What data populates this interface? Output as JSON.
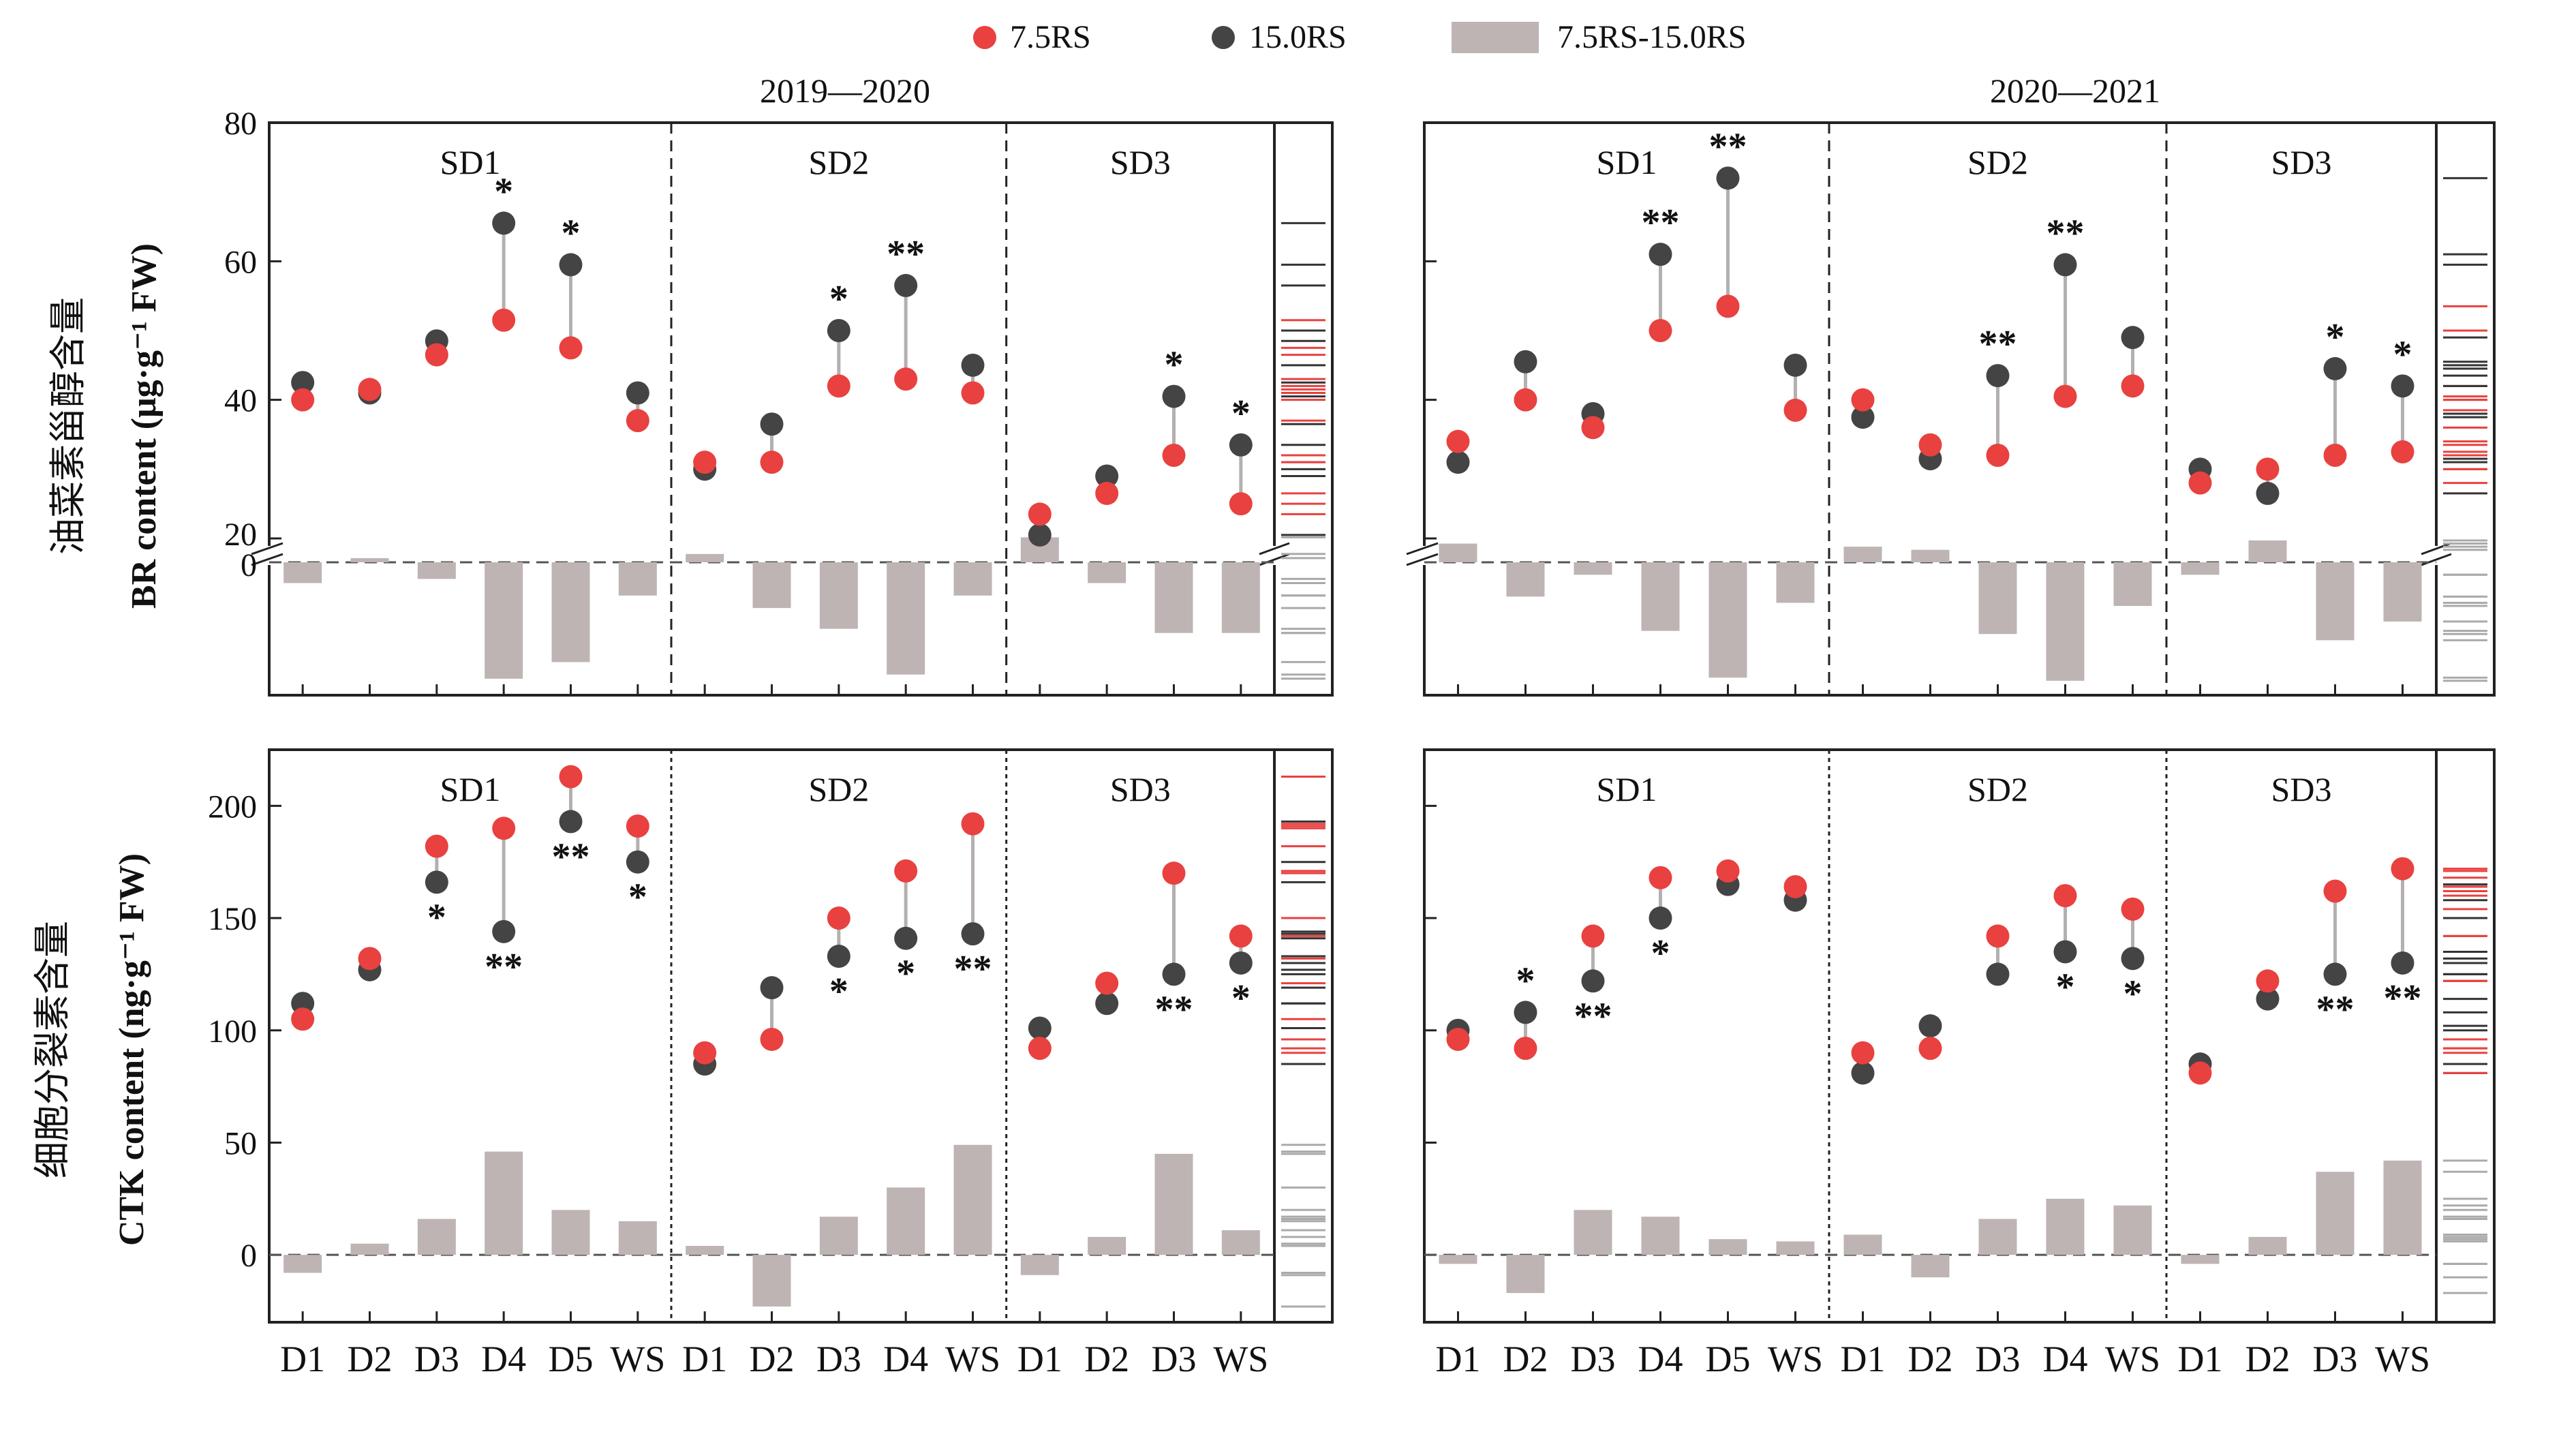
{
  "legend": [
    {
      "label": "7.5RS",
      "kind": "dot",
      "color": "#e8413f"
    },
    {
      "label": "15.0RS",
      "kind": "dot",
      "color": "#444444"
    },
    {
      "label": "7.5RS-15.0RS",
      "kind": "bar",
      "color": "#bdb4b3"
    }
  ],
  "years": [
    "2019—2020",
    "2020—2021"
  ],
  "ylabels": {
    "br_cn": "油菜素甾醇含量",
    "br_en": "BR content (μg·g⁻¹ FW)",
    "ctk_cn": "细胞分裂素含量",
    "ctk_en": "CTK content (ng·g⁻¹ FW)"
  },
  "colors": {
    "red": "#e8413f",
    "dark": "#444444",
    "bar": "#bdb4b3",
    "stem": "#b5b0b0"
  },
  "chart_data": [
    {
      "type": "dot-bar",
      "panel": "BR 2019—2020",
      "year": "2019—2020",
      "ylim": [
        20,
        80
      ],
      "yticks": [
        20,
        40,
        60,
        80
      ],
      "diff_ylim": [
        -15,
        5
      ],
      "groups": [
        {
          "name": "SD1",
          "categories": [
            "D1",
            "D2",
            "D3",
            "D4",
            "D5",
            "WS"
          ],
          "rs75": [
            40,
            41.5,
            46.5,
            51.5,
            47.5,
            37
          ],
          "rs150": [
            42.5,
            41,
            48.5,
            65.5,
            59.5,
            41
          ],
          "sig": [
            "",
            "",
            "",
            "*",
            "*",
            ""
          ]
        },
        {
          "name": "SD2",
          "categories": [
            "D1",
            "D2",
            "D3",
            "D4",
            "WS"
          ],
          "rs75": [
            31,
            31,
            42,
            43,
            41
          ],
          "rs150": [
            30,
            36.5,
            50,
            56.5,
            45
          ],
          "sig": [
            "",
            "",
            "*",
            "**",
            ""
          ]
        },
        {
          "name": "SD3",
          "categories": [
            "D1",
            "D2",
            "D3",
            "WS"
          ],
          "rs75": [
            23.5,
            26.5,
            32,
            25
          ],
          "rs150": [
            20.5,
            29,
            40.5,
            33.5
          ],
          "sig": [
            "",
            "",
            "*",
            "*"
          ]
        }
      ]
    },
    {
      "type": "dot-bar",
      "panel": "BR 2020—2021",
      "year": "2020—2021",
      "ylim": [
        20,
        80
      ],
      "yticks": [
        20,
        40,
        60,
        80
      ],
      "diff_ylim": [
        -20,
        5
      ],
      "groups": [
        {
          "name": "SD1",
          "categories": [
            "D1",
            "D2",
            "D3",
            "D4",
            "D5",
            "WS"
          ],
          "rs75": [
            34,
            40,
            36,
            50,
            53.5,
            38.5
          ],
          "rs150": [
            31,
            45.5,
            38,
            61,
            72,
            45
          ],
          "sig": [
            "",
            "",
            "",
            "**",
            "**",
            ""
          ]
        },
        {
          "name": "SD2",
          "categories": [
            "D1",
            "D2",
            "D3",
            "D4",
            "WS"
          ],
          "rs75": [
            40,
            33.5,
            32,
            40.5,
            42
          ],
          "rs150": [
            37.5,
            31.5,
            43.5,
            59.5,
            49
          ],
          "sig": [
            "",
            "",
            "**",
            "**",
            ""
          ]
        },
        {
          "name": "SD3",
          "categories": [
            "D1",
            "D2",
            "D3",
            "WS"
          ],
          "rs75": [
            28,
            30,
            32,
            32.5
          ],
          "rs150": [
            30,
            26.5,
            44.5,
            42
          ],
          "sig": [
            "",
            "",
            "*",
            "*"
          ]
        }
      ]
    },
    {
      "type": "dot-bar",
      "panel": "CTK 2019—2020",
      "year": "2019—2020",
      "ylim": [
        -30,
        225
      ],
      "yticks": [
        0,
        50,
        100,
        150,
        200
      ],
      "groups": [
        {
          "name": "SD1",
          "categories": [
            "D1",
            "D2",
            "D3",
            "D4",
            "D5",
            "WS"
          ],
          "rs75": [
            105,
            132,
            182,
            190,
            213,
            191
          ],
          "rs150": [
            112,
            127,
            166,
            144,
            193,
            175
          ],
          "diff": [
            -8,
            5,
            16,
            46,
            20,
            15
          ],
          "sig": [
            "",
            "",
            "*",
            "**",
            "**",
            "*"
          ]
        },
        {
          "name": "SD2",
          "categories": [
            "D1",
            "D2",
            "D3",
            "D4",
            "WS"
          ],
          "rs75": [
            90,
            96,
            150,
            171,
            192
          ],
          "rs150": [
            85,
            119,
            133,
            141,
            143
          ],
          "diff": [
            4,
            -23,
            17,
            30,
            49
          ],
          "sig": [
            "",
            "",
            "*",
            "*",
            "**"
          ]
        },
        {
          "name": "SD3",
          "categories": [
            "D1",
            "D2",
            "D3",
            "WS"
          ],
          "rs75": [
            92,
            121,
            170,
            142
          ],
          "rs150": [
            101,
            112,
            125,
            130
          ],
          "diff": [
            -9,
            8,
            45,
            11
          ],
          "sig": [
            "",
            "",
            "**",
            "*"
          ]
        }
      ]
    },
    {
      "type": "dot-bar",
      "panel": "CTK 2020—2021",
      "year": "2020—2021",
      "ylim": [
        -30,
        225
      ],
      "yticks": [
        0,
        50,
        100,
        150,
        200
      ],
      "groups": [
        {
          "name": "SD1",
          "categories": [
            "D1",
            "D2",
            "D3",
            "D4",
            "D5",
            "WS"
          ],
          "rs75": [
            96,
            92,
            142,
            168,
            171,
            164
          ],
          "rs150": [
            100,
            108,
            122,
            150,
            165,
            158
          ],
          "diff": [
            -4,
            -17,
            20,
            17,
            7,
            6
          ],
          "sig": [
            "",
            "*",
            "**",
            "*",
            "",
            ""
          ]
        },
        {
          "name": "SD2",
          "categories": [
            "D1",
            "D2",
            "D3",
            "D4",
            "WS"
          ],
          "rs75": [
            90,
            92,
            142,
            160,
            154
          ],
          "rs150": [
            81,
            102,
            125,
            135,
            132
          ],
          "diff": [
            9,
            -10,
            16,
            25,
            22
          ],
          "sig": [
            "",
            "",
            "",
            "*",
            "*"
          ]
        },
        {
          "name": "SD3",
          "categories": [
            "D1",
            "D2",
            "D3",
            "WS"
          ],
          "rs75": [
            81,
            122,
            162,
            172
          ],
          "rs150": [
            85,
            114,
            125,
            130
          ],
          "diff": [
            -4,
            8,
            37,
            42
          ],
          "sig": [
            "",
            "",
            "**",
            "**"
          ]
        }
      ]
    }
  ]
}
